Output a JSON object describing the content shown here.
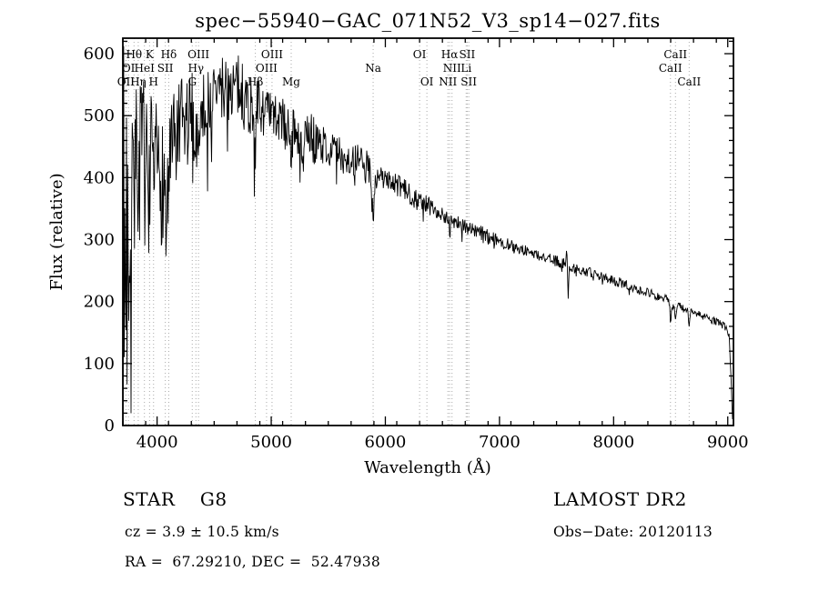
{
  "header": {
    "title": "spec−55940−GAC_071N52_V3_sp14−027.fits"
  },
  "footer": {
    "star_class": "STAR    G8",
    "survey": "LAMOST DR2",
    "cz": "cz = 3.9 ± 10.5 km/s",
    "obs_date": "Obs−Date: 20120113",
    "coords": "RA =  67.29210, DEC =  52.47938"
  },
  "chart_data": {
    "type": "line",
    "title": "spec−55940−GAC_071N52_V3_sp14−027.fits",
    "xlabel": "Wavelength (Å)",
    "ylabel": "Flux (relative)",
    "xlim": [
      3700,
      9050
    ],
    "ylim": [
      0,
      625
    ],
    "xticks": [
      4000,
      5000,
      6000,
      7000,
      8000,
      9000
    ],
    "yticks": [
      0,
      100,
      200,
      300,
      400,
      500,
      600
    ],
    "x_minor_step": 200,
    "y_minor_step": 20,
    "grid": false,
    "legend": "none",
    "line_color": "#000000",
    "ref_line_color": "#aaaaaa",
    "noise_seed": 7,
    "sample_step": 5,
    "spike_probability": 0.06,
    "spike_depth_factor": 1.8,
    "clamp": [
      2,
      612
    ],
    "spectral_lines": [
      {
        "label": "Hθ",
        "wavelength": 3798,
        "row": 0
      },
      {
        "label": "K",
        "wavelength": 3934,
        "row": 0
      },
      {
        "label": "Hδ",
        "wavelength": 4102,
        "row": 0
      },
      {
        "label": "OIII",
        "wavelength": 4363,
        "row": 0
      },
      {
        "label": "OIII",
        "wavelength": 5007,
        "row": 0
      },
      {
        "label": "OI",
        "wavelength": 6300,
        "row": 0
      },
      {
        "label": "Hα",
        "wavelength": 6563,
        "row": 0
      },
      {
        "label": "SII",
        "wavelength": 6717,
        "row": 0
      },
      {
        "label": "CaII",
        "wavelength": 8542,
        "row": 0
      },
      {
        "label": "OI",
        "wavelength": 3749,
        "row": 1
      },
      {
        "label": "HeI",
        "wavelength": 3889,
        "row": 1
      },
      {
        "label": "SII",
        "wavelength": 4072,
        "row": 1
      },
      {
        "label": "Hγ",
        "wavelength": 4340,
        "row": 1
      },
      {
        "label": "OIII",
        "wavelength": 4959,
        "row": 1
      },
      {
        "label": "Na",
        "wavelength": 5893,
        "row": 1
      },
      {
        "label": "NII",
        "wavelength": 6584,
        "row": 1
      },
      {
        "label": "Li",
        "wavelength": 6708,
        "row": 1
      },
      {
        "label": "CaII",
        "wavelength": 8498,
        "row": 1
      },
      {
        "label": "OII",
        "wavelength": 3727,
        "row": 2
      },
      {
        "label": "Hη",
        "wavelength": 3835,
        "row": 2
      },
      {
        "label": "H",
        "wavelength": 3969,
        "row": 2
      },
      {
        "label": "G",
        "wavelength": 4308,
        "row": 2
      },
      {
        "label": "Hβ",
        "wavelength": 4861,
        "row": 2
      },
      {
        "label": "Mg",
        "wavelength": 5175,
        "row": 2
      },
      {
        "label": "OI",
        "wavelength": 6364,
        "row": 2
      },
      {
        "label": "NII",
        "wavelength": 6548,
        "row": 2
      },
      {
        "label": "SII",
        "wavelength": 6731,
        "row": 2
      },
      {
        "label": "CaII",
        "wavelength": 8662,
        "row": 2
      }
    ],
    "noise_segments": [
      [
        3700,
        3790,
        240
      ],
      [
        3790,
        3900,
        140
      ],
      [
        3900,
        4060,
        110
      ],
      [
        4060,
        4320,
        90
      ],
      [
        4320,
        4900,
        55
      ],
      [
        4900,
        5400,
        40
      ],
      [
        5400,
        5900,
        30
      ],
      [
        5900,
        6400,
        18
      ],
      [
        6400,
        7000,
        12
      ],
      [
        7000,
        7600,
        9
      ],
      [
        7600,
        8600,
        8
      ],
      [
        8600,
        9050,
        6
      ]
    ],
    "envelope": [
      [
        3700,
        80
      ],
      [
        3706,
        540
      ],
      [
        3712,
        100
      ],
      [
        3718,
        420
      ],
      [
        3724,
        60
      ],
      [
        3730,
        480
      ],
      [
        3736,
        150
      ],
      [
        3742,
        520
      ],
      [
        3750,
        250
      ],
      [
        3760,
        450
      ],
      [
        3770,
        180
      ],
      [
        3780,
        400
      ],
      [
        3800,
        420
      ],
      [
        3835,
        415
      ],
      [
        3850,
        430
      ],
      [
        3889,
        425
      ],
      [
        3900,
        440
      ],
      [
        3930,
        330
      ],
      [
        3938,
        430
      ],
      [
        3950,
        420
      ],
      [
        3969,
        340
      ],
      [
        3978,
        415
      ],
      [
        4000,
        410
      ],
      [
        4030,
        400
      ],
      [
        4050,
        400
      ],
      [
        4070,
        395
      ],
      [
        4078,
        250
      ],
      [
        4086,
        395
      ],
      [
        4102,
        360
      ],
      [
        4112,
        420
      ],
      [
        4150,
        450
      ],
      [
        4200,
        470
      ],
      [
        4250,
        480
      ],
      [
        4300,
        490
      ],
      [
        4332,
        465
      ],
      [
        4340,
        445
      ],
      [
        4350,
        470
      ],
      [
        4363,
        480
      ],
      [
        4400,
        510
      ],
      [
        4450,
        525
      ],
      [
        4500,
        535
      ],
      [
        4600,
        548
      ],
      [
        4700,
        545
      ],
      [
        4750,
        535
      ],
      [
        4800,
        522
      ],
      [
        4845,
        505
      ],
      [
        4861,
        462
      ],
      [
        4878,
        505
      ],
      [
        4900,
        510
      ],
      [
        4950,
        505
      ],
      [
        5007,
        498
      ],
      [
        5050,
        495
      ],
      [
        5100,
        490
      ],
      [
        5160,
        470
      ],
      [
        5175,
        448
      ],
      [
        5195,
        478
      ],
      [
        5270,
        432
      ],
      [
        5320,
        468
      ],
      [
        5400,
        458
      ],
      [
        5500,
        448
      ],
      [
        5600,
        438
      ],
      [
        5700,
        428
      ],
      [
        5800,
        420
      ],
      [
        5860,
        412
      ],
      [
        5880,
        380
      ],
      [
        5893,
        342
      ],
      [
        5910,
        395
      ],
      [
        5950,
        402
      ],
      [
        6000,
        398
      ],
      [
        6100,
        388
      ],
      [
        6200,
        376
      ],
      [
        6300,
        362
      ],
      [
        6400,
        352
      ],
      [
        6500,
        342
      ],
      [
        6556,
        335
      ],
      [
        6563,
        312
      ],
      [
        6572,
        333
      ],
      [
        6600,
        330
      ],
      [
        6700,
        322
      ],
      [
        6800,
        313
      ],
      [
        6900,
        306
      ],
      [
        7000,
        298
      ],
      [
        7100,
        291
      ],
      [
        7200,
        284
      ],
      [
        7300,
        277
      ],
      [
        7400,
        271
      ],
      [
        7500,
        265
      ],
      [
        7580,
        261
      ],
      [
        7592,
        282
      ],
      [
        7600,
        208
      ],
      [
        7612,
        256
      ],
      [
        7700,
        252
      ],
      [
        7800,
        246
      ],
      [
        7900,
        240
      ],
      [
        8000,
        234
      ],
      [
        8100,
        228
      ],
      [
        8200,
        222
      ],
      [
        8300,
        215
      ],
      [
        8400,
        208
      ],
      [
        8470,
        202
      ],
      [
        8490,
        196
      ],
      [
        8498,
        170
      ],
      [
        8512,
        194
      ],
      [
        8534,
        190
      ],
      [
        8542,
        166
      ],
      [
        8556,
        192
      ],
      [
        8620,
        188
      ],
      [
        8650,
        184
      ],
      [
        8662,
        158
      ],
      [
        8676,
        184
      ],
      [
        8700,
        183
      ],
      [
        8800,
        175
      ],
      [
        8900,
        167
      ],
      [
        8960,
        162
      ],
      [
        9000,
        154
      ],
      [
        9015,
        140
      ],
      [
        9030,
        70
      ],
      [
        9042,
        12
      ]
    ]
  }
}
